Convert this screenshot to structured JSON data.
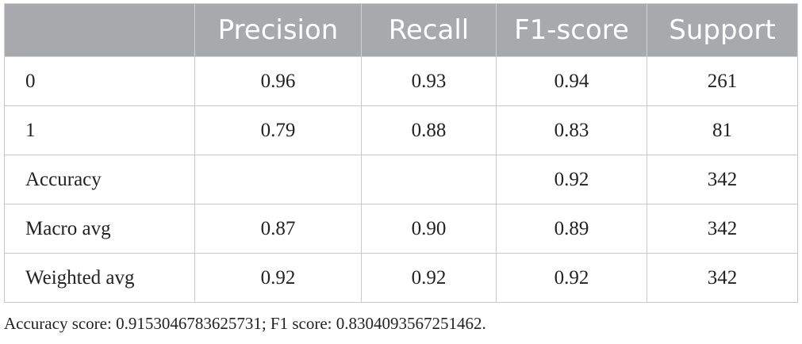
{
  "table": {
    "header": [
      "Precision",
      "Recall",
      "F1-score",
      "Support"
    ],
    "rows": [
      [
        "0",
        "0.96",
        "0.93",
        "0.94",
        "261"
      ],
      [
        "1",
        "0.79",
        "0.88",
        "0.83",
        "81"
      ],
      [
        "Accuracy",
        null,
        null,
        "0.92",
        "342"
      ],
      [
        "Macro avg",
        "0.87",
        "0.90",
        "0.89",
        "342"
      ],
      [
        "Weighted avg",
        "0.92",
        "0.92",
        "0.92",
        "342"
      ]
    ]
  },
  "footnote": "Accuracy score: 0.9153046783625731; F1 score: 0.8304093567251462."
}
